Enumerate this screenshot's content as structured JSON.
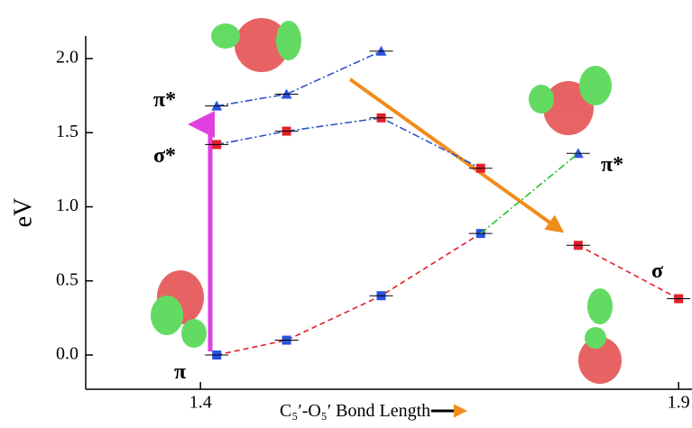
{
  "chart_data": {
    "type": "scatter",
    "x_label": "C₅′-O₅′ Bond Length",
    "y_label": "eV",
    "annotations": [
      "π*",
      "σ*",
      "π",
      "σ",
      "π*"
    ],
    "xlim": [
      1.28,
      1.914
    ],
    "ylim": [
      -0.231,
      2.152
    ],
    "xticks": [
      1.4,
      1.9
    ],
    "yticks": [
      {
        "value": 0,
        "label": "0.0"
      },
      0.5,
      {
        "value": 1,
        "label": "1.0"
      },
      1.5,
      {
        "value": 2,
        "label": "2.0"
      }
    ],
    "series": [
      {
        "color": "#2a52e0",
        "marker": "triangle",
        "line_color": "#2a52c8",
        "dash": "dashdot",
        "x": [
          1.417,
          1.49,
          1.589
        ],
        "values": [
          1.68,
          1.76,
          2.05
        ]
      },
      {
        "color": "#e0202a",
        "marker": "square",
        "line_color": "#2a52c8",
        "dash": "dashdot",
        "x": [
          1.417,
          1.49,
          1.589,
          1.693
        ],
        "values": [
          1.42,
          1.51,
          1.6,
          1.26
        ]
      },
      {
        "color": "#2a52e0",
        "marker": "triangle",
        "line_color": "#2a52c8",
        "dash": "dashdot",
        "x": [
          1.795
        ],
        "values": [
          1.36
        ]
      },
      {
        "color": "#2a52e0",
        "marker": "square",
        "line_color": "#e0202a",
        "dash": "dash",
        "x": [
          1.417,
          1.49,
          1.589,
          1.693
        ],
        "values": [
          0,
          0.1,
          0.4,
          0.82
        ]
      },
      {
        "color": "#e0202a",
        "marker": "square",
        "line_color": "#e0202a",
        "dash": "dash",
        "x": [
          1.795,
          1.9
        ],
        "values": [
          0.74,
          0.38
        ]
      },
      {
        "color": "#22c422",
        "marker": "none",
        "line_color": "#22c422",
        "dash": "dashdot",
        "x": [
          1.693,
          1.795
        ],
        "values": [
          0.82,
          1.36
        ]
      }
    ]
  }
}
